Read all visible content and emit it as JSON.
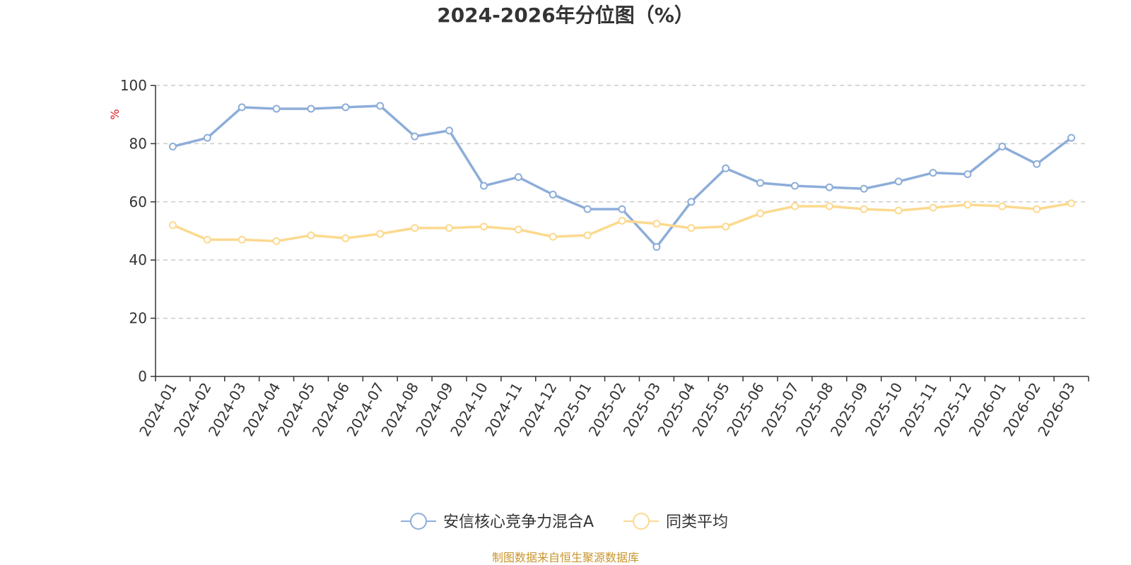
{
  "page": {
    "source_note": "制图数据来自恒生聚源数据库"
  },
  "chart_data": {
    "type": "line",
    "title": "2024-2026年分位图（%）",
    "ylabel": "%",
    "xlabel": "",
    "ylim": [
      0,
      100
    ],
    "yticks": [
      0,
      20,
      40,
      60,
      80,
      100
    ],
    "grid": true,
    "legend_position": "bottom",
    "categories": [
      "2024-01",
      "2024-02",
      "2024-03",
      "2024-04",
      "2024-05",
      "2024-06",
      "2024-07",
      "2024-08",
      "2024-09",
      "2024-10",
      "2024-11",
      "2024-12",
      "2025-01",
      "2025-02",
      "2025-03",
      "2025-04",
      "2025-05",
      "2025-06",
      "2025-07",
      "2025-08",
      "2025-09",
      "2025-10",
      "2025-11",
      "2025-12",
      "2026-01",
      "2026-02",
      "2026-03"
    ],
    "series": [
      {
        "name": "安信核心竞争力混合A",
        "color": "#8dadd9",
        "values": [
          79,
          82,
          92.5,
          92,
          92,
          92.5,
          93,
          82.5,
          84.5,
          65.5,
          68.5,
          62.5,
          57.5,
          57.5,
          44.5,
          60,
          71.5,
          66.5,
          65.5,
          65,
          64.5,
          67,
          70,
          69.5,
          79,
          73,
          82
        ]
      },
      {
        "name": "同类平均",
        "color": "#fcd98e",
        "values": [
          52,
          47,
          47,
          46.5,
          48.5,
          47.5,
          49,
          51,
          51,
          51.5,
          50.5,
          48,
          48.5,
          53.5,
          52.5,
          51,
          51.5,
          56,
          58.5,
          58.5,
          57.5,
          57,
          58,
          59,
          58.5,
          57.5,
          59.5
        ]
      }
    ]
  }
}
